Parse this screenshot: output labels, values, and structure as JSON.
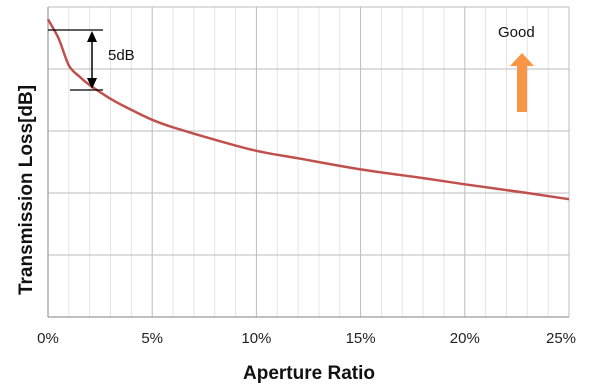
{
  "chart_data": {
    "type": "line",
    "title": "",
    "xlabel": "Aperture Ratio",
    "ylabel": "Transmission Loss[dB]",
    "x_ticks": [
      "0%",
      "5%",
      "10%",
      "15%",
      "20%",
      "25%"
    ],
    "xlim": [
      0,
      25
    ],
    "ylim": [
      0,
      25
    ],
    "grid": true,
    "legend": "none",
    "series": [
      {
        "color": "#c0504d",
        "x": [
          0,
          0.5,
          1.0,
          1.5,
          2.0,
          3.0,
          4.0,
          5.0,
          6.0,
          8.0,
          10.0,
          12.0,
          15.0,
          18.0,
          20.0,
          23.0,
          25.0
        ],
        "y": [
          24.0,
          22.5,
          20.3,
          19.4,
          18.7,
          17.6,
          16.7,
          15.9,
          15.3,
          14.3,
          13.4,
          12.8,
          11.9,
          11.2,
          10.7,
          10.0,
          9.5
        ]
      }
    ],
    "annotations": {
      "delta_label": "5dB",
      "good_label": "Good",
      "arrow_color": "#f79646"
    }
  }
}
